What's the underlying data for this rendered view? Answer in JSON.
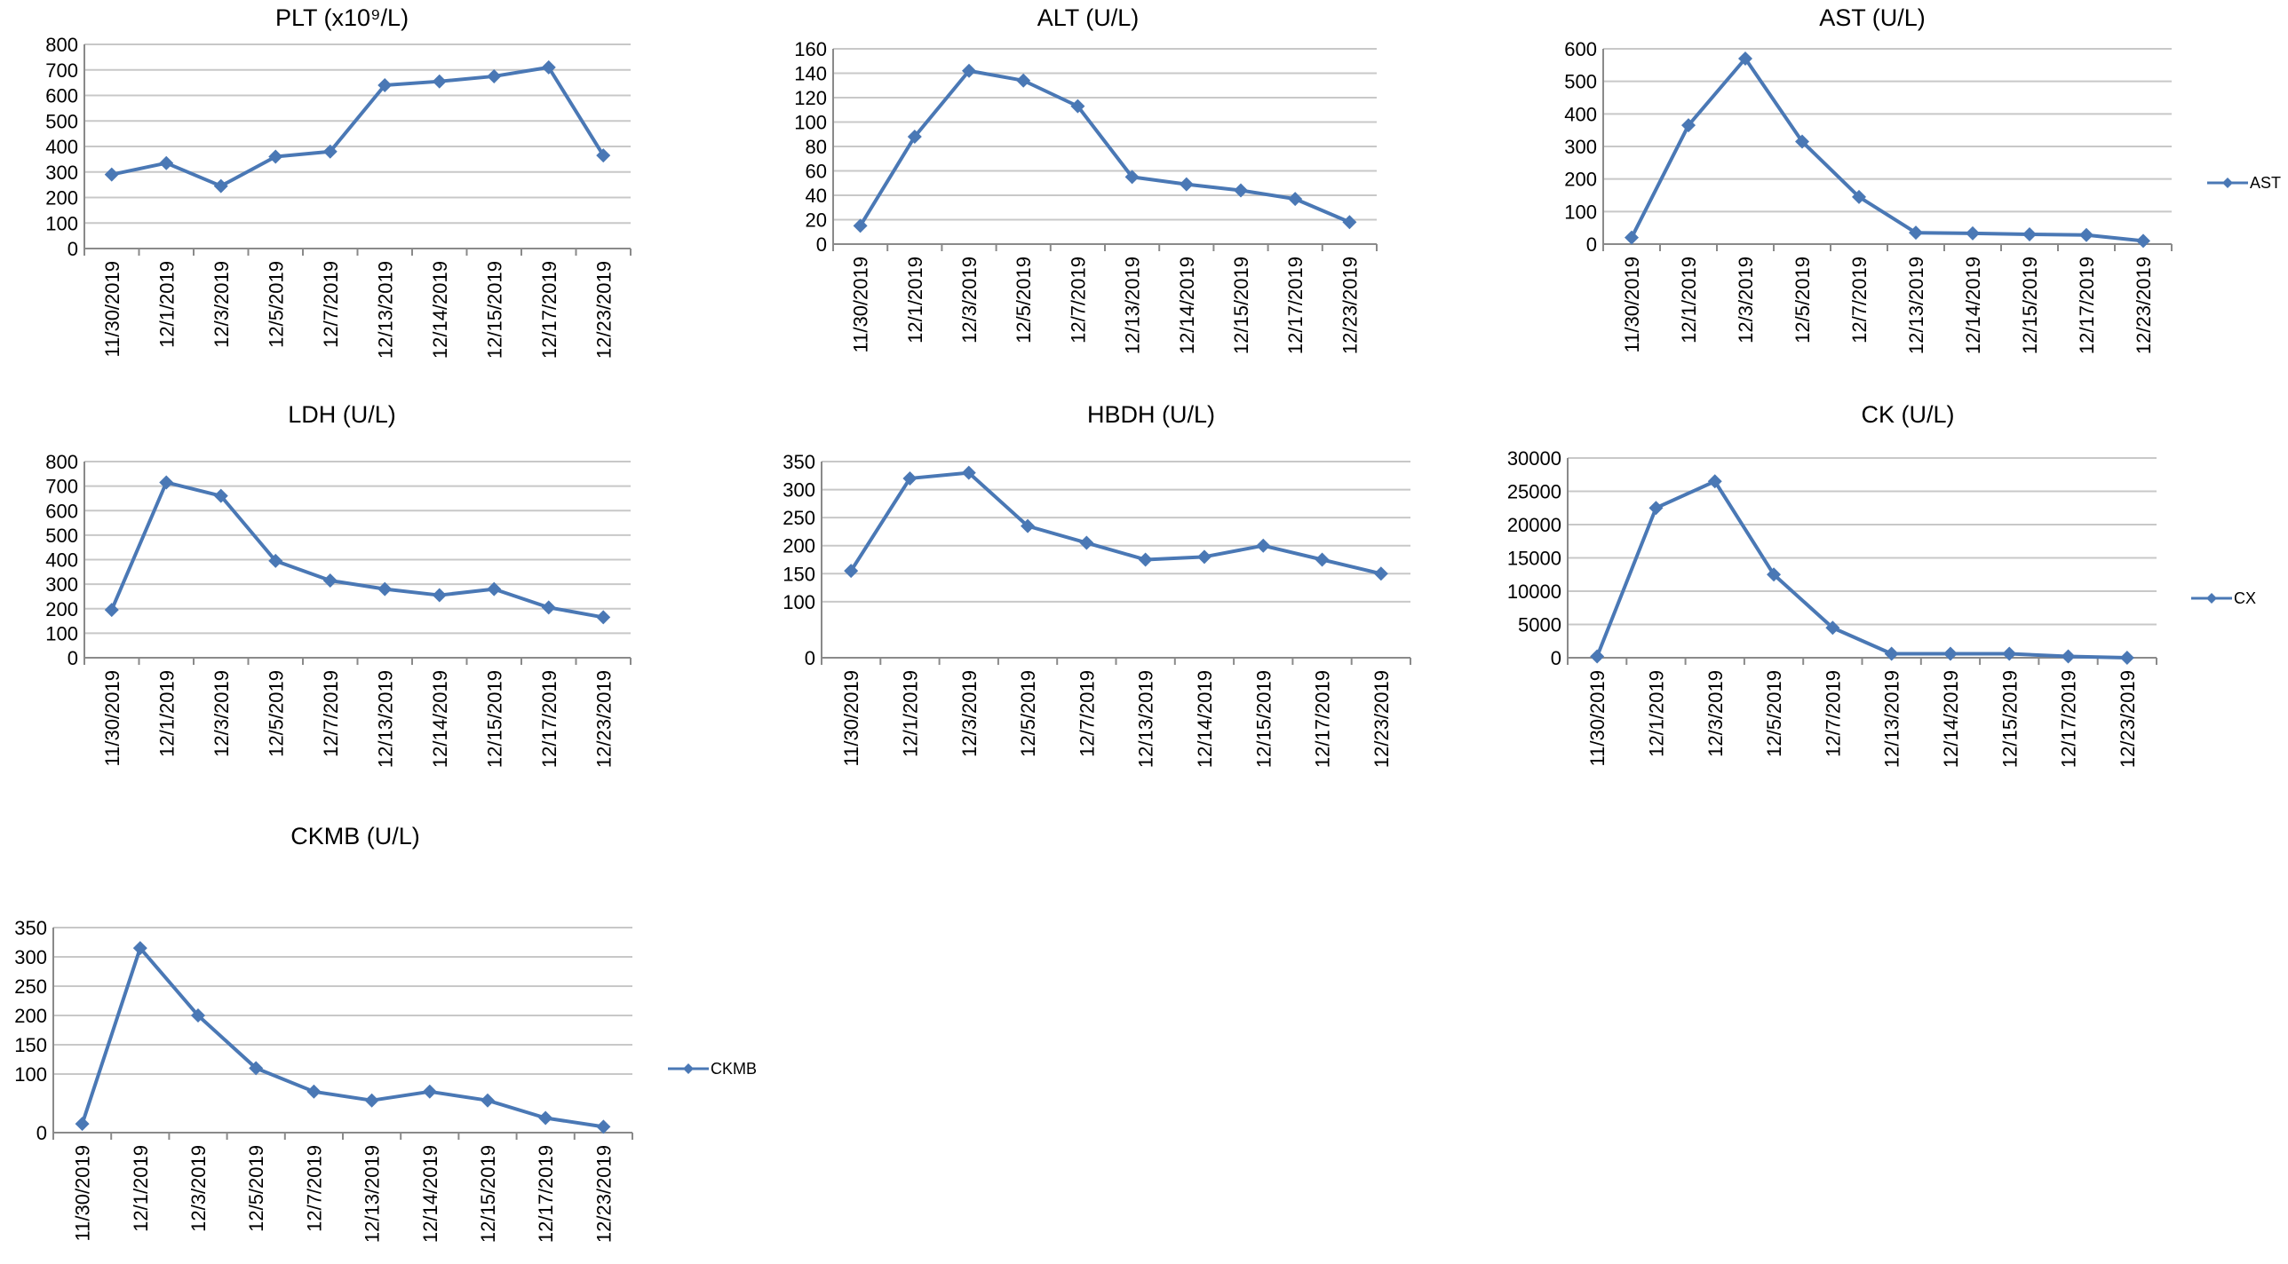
{
  "chart_data": [
    {
      "id": "plt",
      "type": "line",
      "title": "PLT (x10⁹/L)",
      "categories": [
        "11/30/2019",
        "12/1/2019",
        "12/3/2019",
        "12/5/2019",
        "12/7/2019",
        "12/13/2019",
        "12/14/2019",
        "12/15/2019",
        "12/17/2019",
        "12/23/2019"
      ],
      "series": [
        {
          "values": [
            290,
            335,
            245,
            360,
            380,
            640,
            655,
            675,
            710,
            365
          ]
        }
      ],
      "yticks": [
        0,
        100,
        200,
        300,
        400,
        500,
        600,
        700,
        800
      ],
      "ylim": [
        0,
        800
      ],
      "grid": true,
      "legend": ""
    },
    {
      "id": "alt",
      "type": "line",
      "title": "ALT (U/L)",
      "categories": [
        "11/30/2019",
        "12/1/2019",
        "12/3/2019",
        "12/5/2019",
        "12/7/2019",
        "12/13/2019",
        "12/14/2019",
        "12/15/2019",
        "12/17/2019",
        "12/23/2019"
      ],
      "series": [
        {
          "values": [
            15,
            88,
            142,
            134,
            113,
            55,
            49,
            44,
            37,
            18
          ]
        }
      ],
      "yticks": [
        0,
        20,
        40,
        60,
        80,
        100,
        120,
        140,
        160
      ],
      "ylim": [
        0,
        160
      ],
      "grid": true,
      "legend": ""
    },
    {
      "id": "ast",
      "type": "line",
      "title": "AST (U/L)",
      "categories": [
        "11/30/2019",
        "12/1/2019",
        "12/3/2019",
        "12/5/2019",
        "12/7/2019",
        "12/13/2019",
        "12/14/2019",
        "12/15/2019",
        "12/17/2019",
        "12/23/2019"
      ],
      "series": [
        {
          "name": "AST",
          "values": [
            20,
            365,
            570,
            315,
            145,
            35,
            33,
            30,
            28,
            10
          ]
        }
      ],
      "yticks": [
        0,
        100,
        200,
        300,
        400,
        500,
        600
      ],
      "ylim": [
        0,
        600
      ],
      "grid": true,
      "legend": "right"
    },
    {
      "id": "ldh",
      "type": "line",
      "title": "LDH (U/L)",
      "categories": [
        "11/30/2019",
        "12/1/2019",
        "12/3/2019",
        "12/5/2019",
        "12/7/2019",
        "12/13/2019",
        "12/14/2019",
        "12/15/2019",
        "12/17/2019",
        "12/23/2019"
      ],
      "series": [
        {
          "values": [
            195,
            715,
            660,
            395,
            315,
            280,
            255,
            280,
            205,
            165
          ]
        }
      ],
      "yticks": [
        0,
        100,
        200,
        300,
        400,
        500,
        600,
        700,
        800
      ],
      "ylim": [
        0,
        800
      ],
      "grid": true,
      "legend": ""
    },
    {
      "id": "hbdh",
      "type": "line",
      "title": "HBDH (U/L)",
      "categories": [
        "11/30/2019",
        "12/1/2019",
        "12/3/2019",
        "12/5/2019",
        "12/7/2019",
        "12/13/2019",
        "12/14/2019",
        "12/15/2019",
        "12/17/2019",
        "12/23/2019"
      ],
      "series": [
        {
          "values": [
            155,
            320,
            330,
            235,
            205,
            175,
            180,
            200,
            175,
            150
          ]
        }
      ],
      "yticks": [
        0,
        100,
        150,
        200,
        250,
        300,
        350
      ],
      "ylim": [
        0,
        350
      ],
      "grid": true,
      "legend": ""
    },
    {
      "id": "ck",
      "type": "line",
      "title": "CK (U/L)",
      "categories": [
        "11/30/2019",
        "12/1/2019",
        "12/3/2019",
        "12/5/2019",
        "12/7/2019",
        "12/13/2019",
        "12/14/2019",
        "12/15/2019",
        "12/17/2019",
        "12/23/2019"
      ],
      "series": [
        {
          "name": "CX",
          "values": [
            200,
            22500,
            26500,
            12500,
            4500,
            600,
            600,
            600,
            200,
            0
          ]
        }
      ],
      "yticks": [
        0,
        5000,
        10000,
        15000,
        20000,
        25000,
        30000
      ],
      "ylim": [
        0,
        30000
      ],
      "grid": true,
      "legend": "right"
    },
    {
      "id": "ckmb",
      "type": "line",
      "title": "CKMB (U/L)",
      "categories": [
        "11/30/2019",
        "12/1/2019",
        "12/3/2019",
        "12/5/2019",
        "12/7/2019",
        "12/13/2019",
        "12/14/2019",
        "12/15/2019",
        "12/17/2019",
        "12/23/2019"
      ],
      "series": [
        {
          "name": "CKMB",
          "values": [
            15,
            315,
            200,
            110,
            70,
            55,
            70,
            55,
            25,
            10
          ]
        }
      ],
      "yticks": [
        0,
        100,
        150,
        200,
        250,
        300,
        350
      ],
      "ylim": [
        0,
        350
      ],
      "grid": true,
      "legend": "right"
    }
  ],
  "colors": {
    "series": "#4a78b5",
    "grid": "#c8c8c8",
    "axis": "#8a8a8a",
    "text": "#000000"
  }
}
